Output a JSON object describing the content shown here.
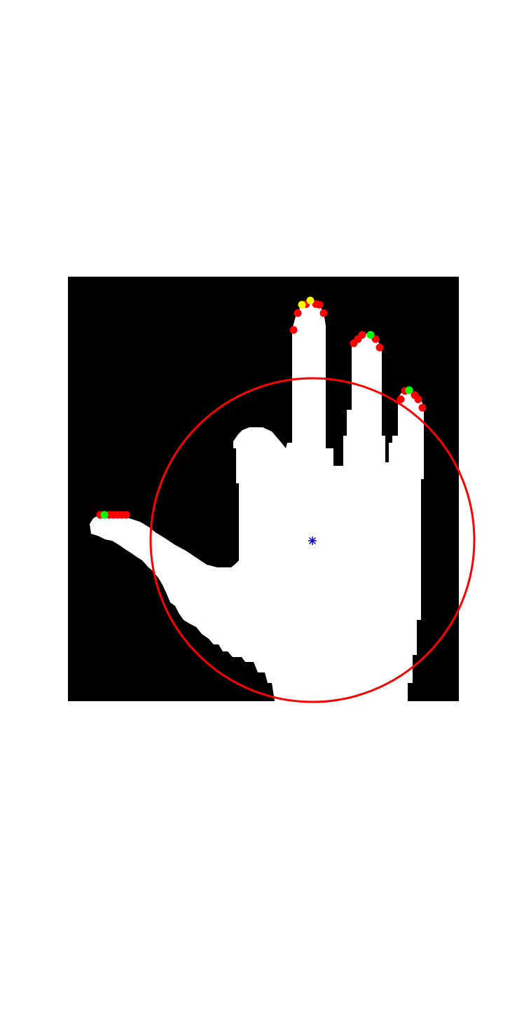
{
  "figure": {
    "background_color": "#ffffff",
    "image": {
      "kind": "binary-hand-segmentation-mask",
      "background_color": "#000000",
      "foreground_color": "#ffffff"
    },
    "palm_circle": {
      "stroke_color": "#ff0000"
    },
    "centroid_marker": {
      "symbol": "asterisk",
      "color": "#0000cc"
    },
    "fingertip_candidates": {
      "color": "#ff0000",
      "count": 22
    },
    "selected_fingertips": {
      "color": "#00ff00",
      "count": 3
    },
    "alternate_fingertips": {
      "color": "#ffff00",
      "count": 2
    }
  }
}
